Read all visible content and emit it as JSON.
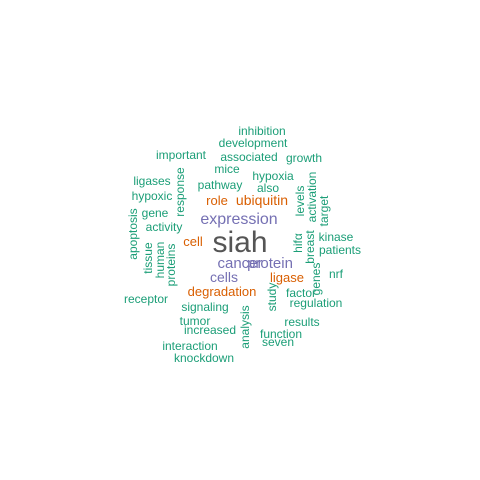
{
  "colors": {
    "teal": "#1b9e77",
    "orange": "#d95f02",
    "purple": "#7570b3",
    "gray": "#555555"
  },
  "words": [
    {
      "text": "siah",
      "color": "gray"
    },
    {
      "text": "expression",
      "color": "purple"
    },
    {
      "text": "cancer",
      "color": "purple"
    },
    {
      "text": "protein",
      "color": "purple"
    },
    {
      "text": "cells",
      "color": "purple"
    },
    {
      "text": "ubiquitin",
      "color": "orange"
    },
    {
      "text": "role",
      "color": "orange"
    },
    {
      "text": "cell",
      "color": "orange"
    },
    {
      "text": "ligase",
      "color": "orange"
    },
    {
      "text": "degradation",
      "color": "orange"
    },
    {
      "text": "inhibition",
      "color": "teal"
    },
    {
      "text": "development",
      "color": "teal"
    },
    {
      "text": "important",
      "color": "teal"
    },
    {
      "text": "associated",
      "color": "teal"
    },
    {
      "text": "growth",
      "color": "teal"
    },
    {
      "text": "mice",
      "color": "teal"
    },
    {
      "text": "hypoxia",
      "color": "teal"
    },
    {
      "text": "ligases",
      "color": "teal"
    },
    {
      "text": "pathway",
      "color": "teal"
    },
    {
      "text": "also",
      "color": "teal"
    },
    {
      "text": "hypoxic",
      "color": "teal"
    },
    {
      "text": "response",
      "color": "teal"
    },
    {
      "text": "levels",
      "color": "teal"
    },
    {
      "text": "activation",
      "color": "teal"
    },
    {
      "text": "target",
      "color": "teal"
    },
    {
      "text": "gene",
      "color": "teal"
    },
    {
      "text": "apoptosis",
      "color": "teal"
    },
    {
      "text": "activity",
      "color": "teal"
    },
    {
      "text": "kinase",
      "color": "teal"
    },
    {
      "text": "hifα",
      "color": "teal"
    },
    {
      "text": "breast",
      "color": "teal"
    },
    {
      "text": "patients",
      "color": "teal"
    },
    {
      "text": "tissue",
      "color": "teal"
    },
    {
      "text": "human",
      "color": "teal"
    },
    {
      "text": "proteins",
      "color": "teal"
    },
    {
      "text": "genes",
      "color": "teal"
    },
    {
      "text": "nrf",
      "color": "teal"
    },
    {
      "text": "factor",
      "color": "teal"
    },
    {
      "text": "receptor",
      "color": "teal"
    },
    {
      "text": "signaling",
      "color": "teal"
    },
    {
      "text": "study",
      "color": "teal"
    },
    {
      "text": "regulation",
      "color": "teal"
    },
    {
      "text": "analysis",
      "color": "teal"
    },
    {
      "text": "tumor",
      "color": "teal"
    },
    {
      "text": "results",
      "color": "teal"
    },
    {
      "text": "increased",
      "color": "teal"
    },
    {
      "text": "function",
      "color": "teal"
    },
    {
      "text": "seven",
      "color": "teal"
    },
    {
      "text": "interaction",
      "color": "teal"
    },
    {
      "text": "knockdown",
      "color": "teal"
    }
  ]
}
